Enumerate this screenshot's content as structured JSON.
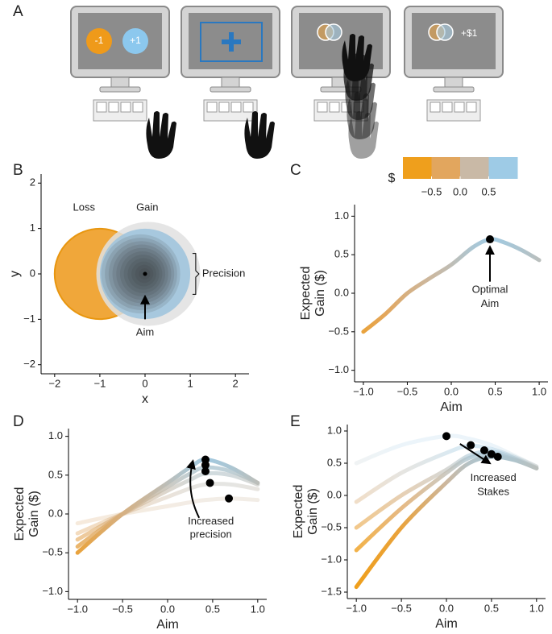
{
  "panel_labels": [
    "A",
    "B",
    "C",
    "D",
    "E"
  ],
  "illustration": {
    "targets": [
      "-1",
      "+1"
    ],
    "reward": "+$1"
  },
  "chart_data": [
    {
      "type": "circles",
      "xlabel": "x",
      "ylabel": "y",
      "xlim": [
        -2.3,
        2.3
      ],
      "ylim": [
        -2.2,
        2.2
      ],
      "xticks": [
        {
          "value": -2,
          "label": "−2"
        },
        {
          "value": -1,
          "label": "−1"
        },
        0,
        1,
        2
      ],
      "yticks": [
        {
          "value": -2,
          "label": "−2"
        },
        {
          "value": -1,
          "label": "−1"
        },
        0,
        1,
        2
      ],
      "circles": [
        {
          "name": "Loss",
          "x": -1,
          "y": 0,
          "r": 1,
          "color": "#f0a73a"
        },
        {
          "name": "Gain",
          "x": 0,
          "y": 0,
          "r": 1,
          "color": "#9cc3dd"
        }
      ],
      "annotations": [
        "Precision",
        "Aim"
      ]
    },
    {
      "type": "line",
      "xlabel": "Aim",
      "ylabel": [
        "Expected",
        "Gain ($)"
      ],
      "xlim": [
        -1.1,
        1.1
      ],
      "ylim": [
        -1.15,
        1.15
      ],
      "xticks": [
        {
          "value": -1,
          "label": "−1.0"
        },
        {
          "value": -0.5,
          "label": "−0.5"
        },
        {
          "value": 0,
          "label": "0.0"
        },
        0.5,
        {
          "value": 1,
          "label": "1.0"
        }
      ],
      "yticks": [
        {
          "value": -1,
          "label": "−1.0"
        },
        {
          "value": -0.5,
          "label": "−0.5"
        },
        {
          "value": 0,
          "label": "0.0"
        },
        0.5,
        {
          "value": 1,
          "label": "1.0"
        }
      ],
      "x": [
        -1,
        -0.75,
        -0.5,
        -0.25,
        0,
        0.25,
        0.44,
        0.6,
        0.8,
        1
      ],
      "series": [
        {
          "opacity": 1,
          "values": [
            -0.5,
            -0.27,
            0,
            0.19,
            0.37,
            0.6,
            0.7,
            0.66,
            0.56,
            0.43
          ]
        }
      ],
      "points": {
        "x": [
          0.44
        ],
        "y": [
          0.7
        ]
      },
      "annotations": [
        "Optimal",
        "Aim"
      ],
      "colorbar": {
        "label": "$",
        "lim": [
          -1,
          1
        ],
        "colors": [
          "#ef9f1c",
          "#e2a65e",
          "#c9b9a6",
          "#9ecbe6"
        ],
        "ticks": [
          {
            "value": -0.5,
            "label": "−0.5"
          },
          {
            "value": 0,
            "label": "0.0"
          },
          0.5
        ]
      }
    },
    {
      "type": "line",
      "xlabel": "Aim",
      "ylabel": [
        "Expected",
        "Gain ($)"
      ],
      "xlim": [
        -1.1,
        1.1
      ],
      "ylim": [
        -1.1,
        1.1
      ],
      "xticks": [
        {
          "value": -1,
          "label": "−1.0"
        },
        {
          "value": -0.5,
          "label": "−0.5"
        },
        {
          "value": 0,
          "label": "0.0"
        },
        0.5,
        {
          "value": 1,
          "label": "1.0"
        }
      ],
      "yticks": [
        {
          "value": -1,
          "label": "−1.0"
        },
        {
          "value": -0.5,
          "label": "−0.5"
        },
        {
          "value": 0,
          "label": "0.0"
        },
        0.5,
        {
          "value": 1,
          "label": "1.0"
        }
      ],
      "x": [
        -1,
        -0.5,
        0,
        0.25,
        0.42,
        0.7,
        1
      ],
      "series": [
        {
          "opacity": 1,
          "values": [
            -0.5,
            0,
            0.4,
            0.6,
            0.7,
            0.6,
            0.4
          ]
        },
        {
          "opacity": 0.8,
          "values": [
            -0.42,
            0,
            0.35,
            0.52,
            0.6,
            0.55,
            0.4
          ]
        },
        {
          "opacity": 0.6,
          "values": [
            -0.33,
            0,
            0.3,
            0.44,
            0.52,
            0.5,
            0.38
          ]
        },
        {
          "opacity": 0.4,
          "values": [
            -0.25,
            0,
            0.22,
            0.33,
            0.38,
            0.38,
            0.32
          ]
        },
        {
          "opacity": 0.25,
          "values": [
            -0.12,
            0,
            0.1,
            0.15,
            0.18,
            0.2,
            0.18
          ]
        }
      ],
      "points": {
        "x": [
          0.42,
          0.42,
          0.42,
          0.47,
          0.68
        ],
        "y": [
          0.7,
          0.63,
          0.55,
          0.4,
          0.2
        ]
      },
      "annotations": [
        "Increased",
        "precision"
      ]
    },
    {
      "type": "line",
      "xlabel": "Aim",
      "ylabel": [
        "Expected",
        "Gain ($)"
      ],
      "xlim": [
        -1.1,
        1.1
      ],
      "ylim": [
        -1.6,
        1.1
      ],
      "xticks": [
        {
          "value": -1,
          "label": "−1.0"
        },
        {
          "value": -0.5,
          "label": "−0.5"
        },
        {
          "value": 0,
          "label": "0.0"
        },
        0.5,
        {
          "value": 1,
          "label": "1.0"
        }
      ],
      "yticks": [
        {
          "value": -1.5,
          "label": "−1.5"
        },
        {
          "value": -1,
          "label": "−1.0"
        },
        {
          "value": -0.5,
          "label": "−0.5"
        },
        {
          "value": 0,
          "label": "0.0"
        },
        0.5,
        {
          "value": 1,
          "label": "1.0"
        }
      ],
      "x": [
        -1,
        -0.5,
        0,
        0.25,
        0.5,
        0.75,
        1
      ],
      "series": [
        {
          "opacity": 1,
          "values": [
            -1.42,
            -0.5,
            0.2,
            0.5,
            0.6,
            0.55,
            0.42
          ]
        },
        {
          "opacity": 0.8,
          "values": [
            -0.85,
            -0.2,
            0.35,
            0.58,
            0.64,
            0.56,
            0.42
          ]
        },
        {
          "opacity": 0.6,
          "values": [
            -0.5,
            0,
            0.4,
            0.62,
            0.68,
            0.58,
            0.43
          ]
        },
        {
          "opacity": 0.4,
          "values": [
            -0.1,
            0.35,
            0.66,
            0.77,
            0.72,
            0.6,
            0.45
          ]
        },
        {
          "opacity": 0.2,
          "values": [
            0.5,
            0.78,
            0.92,
            0.88,
            0.78,
            0.62,
            0.45
          ]
        }
      ],
      "points": {
        "x": [
          0,
          0.27,
          0.42,
          0.5,
          0.57
        ],
        "y": [
          0.92,
          0.78,
          0.7,
          0.64,
          0.6
        ]
      },
      "annotations": [
        "Increased",
        "Stakes"
      ]
    }
  ]
}
